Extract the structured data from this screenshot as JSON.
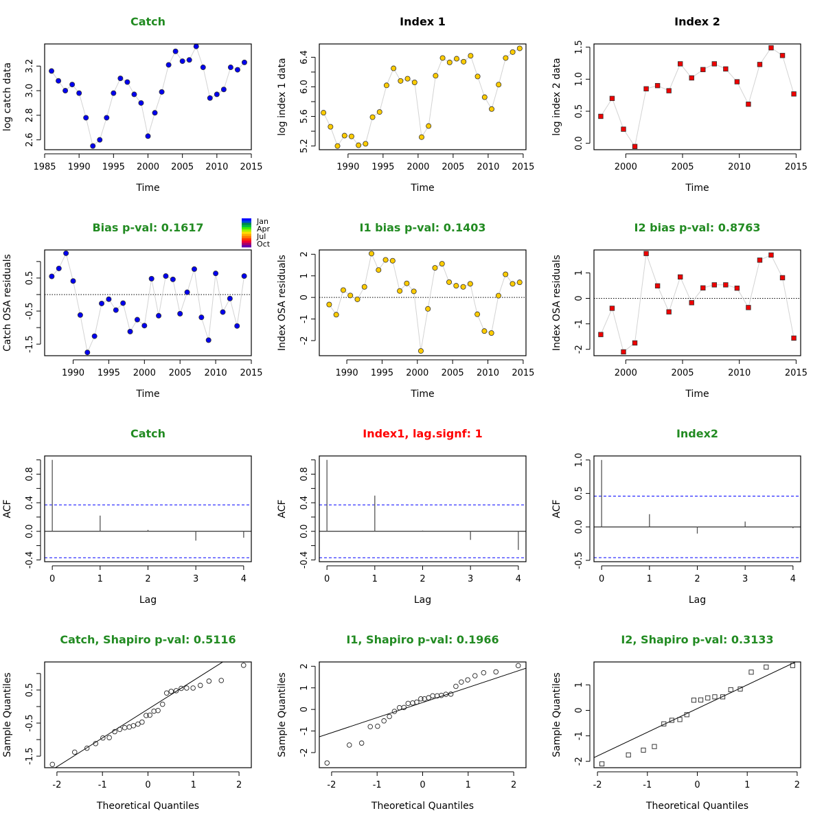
{
  "colors": {
    "catch_fill": "#0000ee",
    "index1_fill": "#ffcc00",
    "index2_fill": "#ee0000",
    "ok_title": "#228B22",
    "warn_title": "#ff0000",
    "connector": "#d3d3d3",
    "ci_line": "#0000ff"
  },
  "legend": {
    "labels": [
      "Jan",
      "Apr",
      "Jul",
      "Oct"
    ],
    "swatches": [
      "#0000ff",
      "#0044dd",
      "#00884a",
      "#00bb44",
      "#44ee00",
      "#aaee00",
      "#ffdd00",
      "#ffaa00",
      "#ff7700",
      "#ff3300",
      "#ee0033",
      "#aa0066",
      "#6600aa"
    ]
  },
  "chart_data": [
    {
      "id": "catch-data",
      "type": "scatter",
      "title": "Catch",
      "title_color": "ok",
      "xlabel": "Time",
      "ylabel": "log catch data",
      "xlim": [
        1985,
        2015
      ],
      "ylim": [
        2.52,
        3.38
      ],
      "xticks": [
        1985,
        1990,
        1995,
        2000,
        2005,
        2010,
        2015
      ],
      "yticks": [
        2.6,
        2.8,
        3.0,
        3.2
      ],
      "ytick_labels": [
        "2.6",
        "2.8",
        "3.0",
        "3.2"
      ],
      "marker": "circle",
      "fill": "catch_fill",
      "connect": true,
      "x": [
        1986,
        1987,
        1988,
        1989,
        1990,
        1991,
        1992,
        1993,
        1994,
        1995,
        1996,
        1997,
        1998,
        1999,
        2000,
        2001,
        2002,
        2003,
        2004,
        2005,
        2006,
        2007,
        2008,
        2009,
        2010,
        2011,
        2012,
        2013,
        2014
      ],
      "y": [
        3.16,
        3.08,
        3.0,
        3.05,
        2.98,
        2.78,
        2.55,
        2.6,
        2.78,
        2.98,
        3.1,
        3.07,
        2.97,
        2.9,
        2.63,
        2.82,
        2.99,
        3.21,
        3.32,
        3.24,
        3.25,
        3.36,
        3.19,
        2.94,
        2.97,
        3.01,
        3.19,
        3.17,
        3.23
      ]
    },
    {
      "id": "index1-data",
      "type": "scatter",
      "title": "Index 1",
      "title_color": "black",
      "xlabel": "Time",
      "ylabel": "log index 1 data",
      "xlim": [
        1985.9,
        2015.4
      ],
      "ylim": [
        5.15,
        6.58
      ],
      "xticks": [
        1990,
        1995,
        2000,
        2005,
        2010,
        2015
      ],
      "yticks": [
        5.2,
        5.4,
        5.6,
        5.8,
        6.0,
        6.2,
        6.4
      ],
      "ytick_labels": [
        "5.2",
        "",
        "5.6",
        "",
        "6.0",
        "",
        "6.4"
      ],
      "marker": "circle",
      "fill": "index1_fill",
      "connect": true,
      "x": [
        1986.5,
        1987.5,
        1988.5,
        1989.5,
        1990.5,
        1991.5,
        1992.5,
        1993.5,
        1994.5,
        1995.5,
        1996.5,
        1997.5,
        1998.5,
        1999.5,
        2000.5,
        2001.5,
        2002.5,
        2003.5,
        2004.5,
        2005.5,
        2006.5,
        2007.5,
        2008.5,
        2009.5,
        2010.5,
        2011.5,
        2012.5,
        2013.5,
        2014.5
      ],
      "y": [
        5.65,
        5.46,
        5.2,
        5.34,
        5.33,
        5.21,
        5.23,
        5.59,
        5.66,
        6.02,
        6.25,
        6.08,
        6.11,
        6.06,
        5.32,
        5.47,
        6.15,
        6.39,
        6.33,
        6.38,
        6.34,
        6.42,
        6.14,
        5.86,
        5.7,
        6.03,
        6.39,
        6.47,
        6.52
      ]
    },
    {
      "id": "index2-data",
      "type": "scatter",
      "title": "Index 2",
      "title_color": "black",
      "xlabel": "Time",
      "ylabel": "log index 2 data",
      "xlim": [
        1997.2,
        2015.4
      ],
      "ylim": [
        -0.1,
        1.55
      ],
      "xticks": [
        2000,
        2005,
        2010,
        2015
      ],
      "yticks": [
        0.0,
        0.5,
        1.0,
        1.5
      ],
      "ytick_labels": [
        "0.0",
        "0.5",
        "1.0",
        "1.5"
      ],
      "marker": "square",
      "fill": "index2_fill",
      "connect": true,
      "x": [
        1997.8,
        1998.8,
        1999.8,
        2000.8,
        2001.8,
        2002.8,
        2003.8,
        2004.8,
        2005.8,
        2006.8,
        2007.8,
        2008.8,
        2009.8,
        2010.8,
        2011.8,
        2012.8,
        2013.8,
        2014.8
      ],
      "y": [
        0.42,
        0.7,
        0.22,
        -0.05,
        0.85,
        0.9,
        0.82,
        1.24,
        1.02,
        1.15,
        1.24,
        1.16,
        0.96,
        0.61,
        1.23,
        1.49,
        1.37,
        0.77
      ]
    },
    {
      "id": "catch-resid",
      "type": "scatter",
      "title": "Bias p-val: 0.1617",
      "title_color": "ok",
      "xlabel": "Time",
      "ylabel": "Catch OSA residuals",
      "xlim": [
        1986,
        2015
      ],
      "ylim": [
        -1.85,
        1.35
      ],
      "xticks": [
        1990,
        1995,
        2000,
        2005,
        2010,
        2015
      ],
      "yticks": [
        -1.5,
        -1.0,
        -0.5,
        0.0,
        0.5,
        1.0
      ],
      "ytick_labels": [
        "-1.5",
        "",
        "-0.5",
        "",
        "0.5",
        ""
      ],
      "marker": "circle",
      "fill": "catch_fill",
      "connect": true,
      "hline": 0,
      "legend": true,
      "x": [
        1987,
        1988,
        1989,
        1990,
        1991,
        1992,
        1993,
        1994,
        1995,
        1996,
        1997,
        1998,
        1999,
        2000,
        2001,
        2002,
        2003,
        2004,
        2005,
        2006,
        2007,
        2008,
        2009,
        2010,
        2011,
        2012,
        2013,
        2014
      ],
      "y": [
        0.55,
        0.79,
        1.25,
        0.41,
        -0.62,
        -1.75,
        -1.26,
        -0.27,
        -0.14,
        -0.47,
        -0.26,
        -1.12,
        -0.76,
        -0.94,
        0.48,
        -0.64,
        0.56,
        0.46,
        -0.58,
        0.07,
        0.77,
        -0.69,
        -1.38,
        0.64,
        -0.53,
        -0.12,
        -0.95,
        0.56
      ]
    },
    {
      "id": "index1-resid",
      "type": "scatter",
      "title": "I1 bias p-val: 0.1403",
      "title_color": "ok",
      "xlabel": "Time",
      "ylabel": "Index OSA residuals",
      "xlim": [
        1986.1,
        2015.4
      ],
      "ylim": [
        -2.7,
        2.2
      ],
      "xticks": [
        1990,
        1995,
        2000,
        2005,
        2010,
        2015
      ],
      "yticks": [
        -2,
        -1,
        0,
        1,
        2
      ],
      "ytick_labels": [
        "-2",
        "-1",
        "0",
        "1",
        "2"
      ],
      "marker": "circle",
      "fill": "index1_fill",
      "connect": true,
      "hline": 0,
      "x": [
        1987.5,
        1988.5,
        1989.5,
        1990.5,
        1991.5,
        1992.5,
        1993.5,
        1994.5,
        1995.5,
        1996.5,
        1997.5,
        1998.5,
        1999.5,
        2000.5,
        2001.5,
        2002.5,
        2003.5,
        2004.5,
        2005.5,
        2006.5,
        2007.5,
        2008.5,
        2009.5,
        2010.5,
        2011.5,
        2012.5,
        2013.5,
        2014.5
      ],
      "y": [
        -0.33,
        -0.8,
        0.34,
        0.09,
        -0.09,
        0.49,
        2.03,
        1.27,
        1.74,
        1.7,
        0.3,
        0.65,
        0.28,
        -2.48,
        -0.53,
        1.37,
        1.56,
        0.71,
        0.54,
        0.49,
        0.63,
        -0.78,
        -1.56,
        -1.65,
        0.08,
        1.07,
        0.63,
        0.7
      ]
    },
    {
      "id": "index2-resid",
      "type": "scatter",
      "title": "I2 bias p-val: 0.8763",
      "title_color": "ok",
      "xlabel": "Time",
      "ylabel": "Index OSA residuals",
      "xlim": [
        1997.2,
        2015.4
      ],
      "ylim": [
        -2.25,
        1.9
      ],
      "xticks": [
        2000,
        2005,
        2010,
        2015
      ],
      "yticks": [
        -2,
        -1,
        0,
        1
      ],
      "ytick_labels": [
        "-2",
        "-1",
        "0",
        "1"
      ],
      "marker": "square",
      "fill": "index2_fill",
      "connect": true,
      "hline": 0,
      "x": [
        1997.8,
        1998.8,
        1999.8,
        2000.8,
        2001.8,
        2002.8,
        2003.8,
        2004.8,
        2005.8,
        2006.8,
        2007.8,
        2008.8,
        2009.8,
        2010.8,
        2011.8,
        2012.8,
        2013.8,
        2014.8
      ],
      "y": [
        -1.42,
        -0.39,
        -2.1,
        -1.75,
        1.76,
        0.49,
        -0.53,
        0.84,
        -0.17,
        0.41,
        0.53,
        0.53,
        0.4,
        -0.36,
        1.5,
        1.7,
        0.81,
        -1.56
      ]
    },
    {
      "id": "catch-acf",
      "type": "bar",
      "title": "Catch",
      "title_color": "ok",
      "xlabel": "Lag",
      "ylabel": "ACF",
      "xlim": [
        -0.16,
        4.16
      ],
      "ylim": [
        -0.425,
        1.055
      ],
      "xticks": [
        0,
        1,
        2,
        3,
        4
      ],
      "yticks": [
        -0.4,
        -0.2,
        0.0,
        0.2,
        0.4,
        0.6,
        0.8,
        1.0
      ],
      "ytick_labels": [
        "-0.4",
        "",
        "0.0",
        "",
        "0.4",
        "",
        "0.8",
        ""
      ],
      "lags": [
        0,
        1,
        2,
        3,
        4
      ],
      "acf": [
        1.0,
        0.22,
        0.02,
        -0.13,
        -0.09
      ],
      "ci": 0.37
    },
    {
      "id": "index1-acf",
      "type": "bar",
      "title": "Index1, lag.signf: 1",
      "title_color": "warn",
      "xlabel": "Lag",
      "ylabel": "ACF",
      "xlim": [
        -0.16,
        4.16
      ],
      "ylim": [
        -0.425,
        1.055
      ],
      "xticks": [
        0,
        1,
        2,
        3,
        4
      ],
      "yticks": [
        -0.4,
        -0.2,
        0.0,
        0.2,
        0.4,
        0.6,
        0.8,
        1.0
      ],
      "ytick_labels": [
        "-0.4",
        "",
        "0.0",
        "",
        "0.4",
        "",
        "0.8",
        ""
      ],
      "lags": [
        0,
        1,
        2,
        3,
        4
      ],
      "acf": [
        1.0,
        0.5,
        0.01,
        -0.12,
        -0.26
      ],
      "ci": 0.37
    },
    {
      "id": "index2-acf",
      "type": "bar",
      "title": "Index2",
      "title_color": "ok",
      "xlabel": "Lag",
      "ylabel": "ACF",
      "xlim": [
        -0.16,
        4.16
      ],
      "ylim": [
        -0.52,
        1.06
      ],
      "xticks": [
        0,
        1,
        2,
        3,
        4
      ],
      "yticks": [
        -0.5,
        0.0,
        0.5,
        1.0
      ],
      "ytick_labels": [
        "-0.5",
        "0.0",
        "0.5",
        "1.0"
      ],
      "lags": [
        0,
        1,
        2,
        3,
        4
      ],
      "acf": [
        1.0,
        0.19,
        -0.1,
        0.08,
        -0.02
      ],
      "ci": 0.46
    },
    {
      "id": "catch-qq",
      "type": "scatter",
      "title": "Catch, Shapiro p-val: 0.5116",
      "title_color": "ok",
      "xlabel": "Theoretical Quantiles",
      "ylabel": "Sample Quantiles",
      "xlim": [
        -2.27,
        2.27
      ],
      "ylim": [
        -1.85,
        1.35
      ],
      "xticks": [
        -2,
        -1,
        0,
        1,
        2
      ],
      "xtick_labels": [
        "-2",
        "-1",
        "0",
        "1",
        "2"
      ],
      "yticks": [
        -1.5,
        -1.0,
        -0.5,
        0.0,
        0.5,
        1.0
      ],
      "ytick_labels": [
        "-1.5",
        "",
        "-0.5",
        "",
        "0.5",
        ""
      ],
      "marker": "open-circle",
      "connect": false,
      "qqline": {
        "intercept": -0.08,
        "slope": 0.87
      },
      "x": [
        -2.1,
        -1.61,
        -1.34,
        -1.15,
        -0.99,
        -0.85,
        -0.73,
        -0.62,
        -0.51,
        -0.41,
        -0.32,
        -0.22,
        -0.13,
        -0.04,
        0.04,
        0.13,
        0.22,
        0.32,
        0.41,
        0.51,
        0.62,
        0.73,
        0.85,
        0.99,
        1.15,
        1.34,
        1.61,
        2.1
      ],
      "y": [
        -1.75,
        -1.38,
        -1.26,
        -1.12,
        -0.95,
        -0.94,
        -0.76,
        -0.69,
        -0.64,
        -0.62,
        -0.58,
        -0.53,
        -0.47,
        -0.27,
        -0.26,
        -0.14,
        -0.12,
        0.07,
        0.41,
        0.46,
        0.48,
        0.55,
        0.56,
        0.56,
        0.64,
        0.77,
        0.79,
        1.25
      ]
    },
    {
      "id": "index1-qq",
      "type": "scatter",
      "title": "I1, Shapiro p-val: 0.1966",
      "title_color": "ok",
      "xlabel": "Theoretical Quantiles",
      "ylabel": "Sample Quantiles",
      "xlim": [
        -2.27,
        2.27
      ],
      "ylim": [
        -2.7,
        2.2
      ],
      "xticks": [
        -2,
        -1,
        0,
        1,
        2
      ],
      "xtick_labels": [
        "-2",
        "-1",
        "0",
        "1",
        "2"
      ],
      "yticks": [
        -2,
        -1,
        0,
        1,
        2
      ],
      "ytick_labels": [
        "-2",
        "-1",
        "0",
        "1",
        "2"
      ],
      "marker": "open-circle",
      "connect": false,
      "qqline": {
        "intercept": 0.32,
        "slope": 0.7
      },
      "x": [
        -2.1,
        -1.61,
        -1.34,
        -1.15,
        -0.99,
        -0.85,
        -0.73,
        -0.62,
        -0.51,
        -0.41,
        -0.32,
        -0.22,
        -0.13,
        -0.04,
        0.04,
        0.13,
        0.22,
        0.32,
        0.41,
        0.51,
        0.62,
        0.73,
        0.85,
        0.99,
        1.15,
        1.34,
        1.61,
        2.1
      ],
      "y": [
        -2.48,
        -1.65,
        -1.56,
        -0.8,
        -0.78,
        -0.53,
        -0.33,
        -0.09,
        0.08,
        0.09,
        0.28,
        0.3,
        0.34,
        0.49,
        0.49,
        0.54,
        0.63,
        0.63,
        0.65,
        0.7,
        0.71,
        1.07,
        1.27,
        1.37,
        1.56,
        1.7,
        1.74,
        2.03
      ]
    },
    {
      "id": "index2-qq",
      "type": "scatter",
      "title": "I2, Shapiro p-val: 0.3133",
      "title_color": "ok",
      "xlabel": "Theoretical Quantiles",
      "ylabel": "Sample Quantiles",
      "xlim": [
        -2.07,
        2.07
      ],
      "ylim": [
        -2.25,
        1.9
      ],
      "xticks": [
        -2,
        -1,
        0,
        1,
        2
      ],
      "xtick_labels": [
        "-2",
        "-1",
        "0",
        "1",
        "2"
      ],
      "yticks": [
        -2,
        -1,
        0,
        1
      ],
      "ytick_labels": [
        "-2",
        "-1",
        "0",
        "1"
      ],
      "marker": "open-square",
      "connect": false,
      "qqline": {
        "intercept": 0.07,
        "slope": 0.93
      },
      "x": [
        -1.91,
        -1.38,
        -1.08,
        -0.86,
        -0.67,
        -0.51,
        -0.35,
        -0.21,
        -0.07,
        0.07,
        0.21,
        0.35,
        0.51,
        0.67,
        0.86,
        1.08,
        1.38,
        1.91
      ],
      "y": [
        -2.1,
        -1.75,
        -1.56,
        -1.42,
        -0.53,
        -0.39,
        -0.36,
        -0.17,
        0.4,
        0.41,
        0.49,
        0.53,
        0.53,
        0.81,
        0.84,
        1.5,
        1.7,
        1.76
      ]
    }
  ]
}
